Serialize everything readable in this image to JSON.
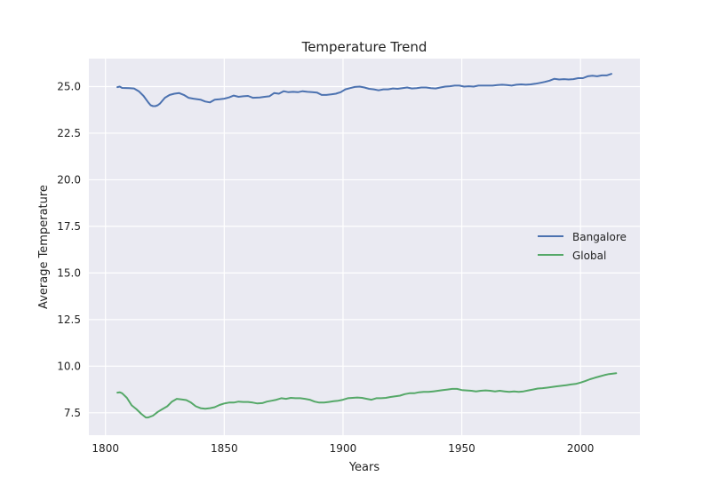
{
  "chart_data": {
    "type": "line",
    "title": "Temperature Trend",
    "xlabel": "Years",
    "ylabel": "Average Temperature",
    "xlim": [
      1793,
      2025
    ],
    "ylim": [
      6.3,
      26.5
    ],
    "x_ticks": [
      1800,
      1850,
      1900,
      1950,
      2000
    ],
    "y_ticks": [
      7.5,
      10.0,
      12.5,
      15.0,
      17.5,
      20.0,
      22.5,
      25.0
    ],
    "grid": true,
    "legend_position": "center-right",
    "series": [
      {
        "name": "Bangalore",
        "color": "#4c72b0",
        "x": [
          1805,
          1806,
          1807,
          1810,
          1812,
          1814,
          1816,
          1818,
          1819,
          1820,
          1821,
          1822,
          1823,
          1825,
          1827,
          1829,
          1831,
          1833,
          1835,
          1837,
          1840,
          1842,
          1844,
          1846,
          1848,
          1850,
          1852,
          1854,
          1856,
          1858,
          1860,
          1862,
          1865,
          1867,
          1869,
          1871,
          1873,
          1875,
          1877,
          1879,
          1881,
          1883,
          1885,
          1887,
          1889,
          1891,
          1893,
          1895,
          1897,
          1899,
          1901,
          1903,
          1905,
          1907,
          1909,
          1911,
          1913,
          1915,
          1917,
          1919,
          1921,
          1923,
          1925,
          1927,
          1929,
          1931,
          1933,
          1935,
          1937,
          1939,
          1941,
          1943,
          1945,
          1947,
          1949,
          1951,
          1953,
          1955,
          1957,
          1959,
          1961,
          1963,
          1965,
          1967,
          1969,
          1971,
          1973,
          1975,
          1977,
          1979,
          1981,
          1983,
          1985,
          1987,
          1989,
          1991,
          1993,
          1995,
          1997,
          1999,
          2001,
          2003,
          2005,
          2007,
          2009,
          2011,
          2013
        ],
        "values": [
          24.97,
          25.0,
          24.93,
          24.92,
          24.9,
          24.75,
          24.5,
          24.15,
          24.0,
          23.95,
          23.95,
          24.0,
          24.1,
          24.4,
          24.55,
          24.62,
          24.65,
          24.55,
          24.4,
          24.35,
          24.3,
          24.2,
          24.15,
          24.3,
          24.32,
          24.35,
          24.42,
          24.52,
          24.45,
          24.48,
          24.5,
          24.4,
          24.42,
          24.45,
          24.48,
          24.65,
          24.62,
          24.75,
          24.7,
          24.72,
          24.7,
          24.75,
          24.72,
          24.7,
          24.68,
          24.55,
          24.55,
          24.58,
          24.62,
          24.7,
          24.85,
          24.92,
          24.98,
          25.0,
          24.95,
          24.88,
          24.85,
          24.8,
          24.85,
          24.85,
          24.9,
          24.88,
          24.92,
          24.95,
          24.9,
          24.92,
          24.95,
          24.95,
          24.92,
          24.9,
          24.95,
          25.0,
          25.02,
          25.05,
          25.05,
          25.0,
          25.02,
          25.0,
          25.05,
          25.05,
          25.05,
          25.05,
          25.08,
          25.1,
          25.08,
          25.05,
          25.1,
          25.12,
          25.1,
          25.12,
          25.15,
          25.2,
          25.25,
          25.32,
          25.42,
          25.38,
          25.4,
          25.38,
          25.4,
          25.45,
          25.45,
          25.55,
          25.58,
          25.55,
          25.6,
          25.6,
          25.68
        ]
      },
      {
        "name": "Global",
        "color": "#55a868",
        "x": [
          1805,
          1806,
          1807,
          1809,
          1811,
          1813,
          1815,
          1817,
          1818,
          1820,
          1822,
          1824,
          1826,
          1828,
          1830,
          1832,
          1834,
          1836,
          1838,
          1840,
          1842,
          1844,
          1846,
          1848,
          1850,
          1852,
          1854,
          1856,
          1858,
          1860,
          1862,
          1864,
          1866,
          1868,
          1870,
          1872,
          1874,
          1876,
          1878,
          1880,
          1882,
          1884,
          1886,
          1888,
          1890,
          1892,
          1894,
          1896,
          1898,
          1900,
          1902,
          1904,
          1906,
          1908,
          1910,
          1912,
          1914,
          1916,
          1918,
          1920,
          1922,
          1924,
          1926,
          1928,
          1930,
          1932,
          1934,
          1936,
          1938,
          1940,
          1942,
          1944,
          1946,
          1948,
          1950,
          1952,
          1954,
          1956,
          1958,
          1960,
          1962,
          1964,
          1966,
          1968,
          1970,
          1972,
          1974,
          1976,
          1978,
          1980,
          1982,
          1984,
          1986,
          1988,
          1990,
          1992,
          1994,
          1996,
          1998,
          2000,
          2002,
          2004,
          2006,
          2008,
          2010,
          2012,
          2015
        ],
        "values": [
          8.58,
          8.6,
          8.55,
          8.3,
          7.9,
          7.7,
          7.45,
          7.25,
          7.25,
          7.35,
          7.55,
          7.7,
          7.85,
          8.1,
          8.25,
          8.22,
          8.18,
          8.05,
          7.85,
          7.75,
          7.72,
          7.75,
          7.8,
          7.92,
          8.0,
          8.05,
          8.05,
          8.1,
          8.08,
          8.08,
          8.05,
          8.0,
          8.02,
          8.1,
          8.15,
          8.2,
          8.28,
          8.25,
          8.3,
          8.28,
          8.28,
          8.25,
          8.2,
          8.1,
          8.05,
          8.05,
          8.08,
          8.12,
          8.15,
          8.2,
          8.28,
          8.3,
          8.32,
          8.3,
          8.25,
          8.2,
          8.28,
          8.28,
          8.3,
          8.35,
          8.38,
          8.42,
          8.5,
          8.55,
          8.55,
          8.6,
          8.62,
          8.62,
          8.65,
          8.68,
          8.72,
          8.75,
          8.78,
          8.78,
          8.72,
          8.7,
          8.68,
          8.65,
          8.68,
          8.7,
          8.68,
          8.65,
          8.68,
          8.65,
          8.62,
          8.65,
          8.62,
          8.65,
          8.7,
          8.75,
          8.8,
          8.82,
          8.85,
          8.88,
          8.92,
          8.95,
          8.98,
          9.02,
          9.05,
          9.12,
          9.2,
          9.3,
          9.38,
          9.45,
          9.52,
          9.58,
          9.62
        ]
      }
    ]
  }
}
